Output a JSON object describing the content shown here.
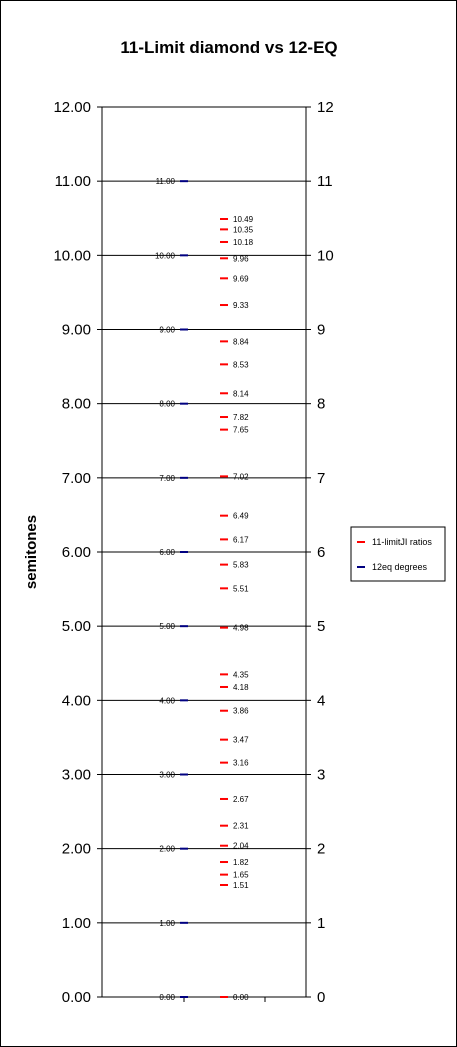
{
  "chart_data": {
    "type": "scatter",
    "title": "11-Limit diamond vs 12-EQ",
    "ylabel": "semitones",
    "ylim": [
      0,
      12
    ],
    "y_ticks_left": [
      "0.00",
      "1.00",
      "2.00",
      "3.00",
      "4.00",
      "5.00",
      "6.00",
      "7.00",
      "8.00",
      "9.00",
      "10.00",
      "11.00",
      "12.00"
    ],
    "y_ticks_right": [
      "0",
      "1",
      "2",
      "3",
      "4",
      "5",
      "6",
      "7",
      "8",
      "9",
      "10",
      "11",
      "12"
    ],
    "gridlines": true,
    "legend_position": "right",
    "series": [
      {
        "name": "11-limitJI ratios",
        "color": "#ff0000",
        "values": [
          0.0,
          1.51,
          1.65,
          1.82,
          2.04,
          2.31,
          2.67,
          3.16,
          3.47,
          3.86,
          4.18,
          4.35,
          4.98,
          5.51,
          5.83,
          6.17,
          6.49,
          7.02,
          7.65,
          7.82,
          8.14,
          8.53,
          8.84,
          9.33,
          9.69,
          9.96,
          10.18,
          10.35,
          10.49
        ],
        "labels": [
          "0.00",
          "1.51",
          "1.65",
          "1.82",
          "2.04",
          "2.31",
          "2.67",
          "3.16",
          "3.47",
          "3.86",
          "4.18",
          "4.35",
          "4.98",
          "5.51",
          "5.83",
          "6.17",
          "6.49",
          "7.02",
          "7.65",
          "7.82",
          "8.14",
          "8.53",
          "8.84",
          "9.33",
          "9.69",
          "9.96",
          "10.18",
          "10.35",
          "10.49"
        ]
      },
      {
        "name": "12eq degrees",
        "color": "#000080",
        "values": [
          0,
          1,
          2,
          3,
          4,
          5,
          6,
          7,
          8,
          9,
          10,
          11
        ],
        "labels": [
          "0.00",
          "1.00",
          "2.00",
          "3.00",
          "4.00",
          "5.00",
          "6.00",
          "7.00",
          "8.00",
          "9.00",
          "10.00",
          "11.00"
        ]
      }
    ]
  }
}
